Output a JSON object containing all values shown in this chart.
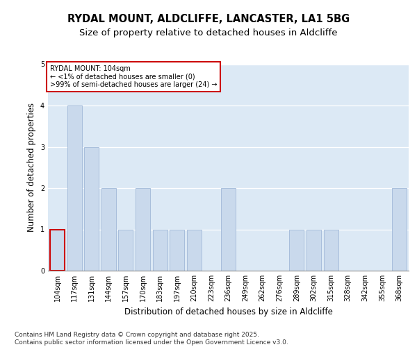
{
  "title1": "RYDAL MOUNT, ALDCLIFFE, LANCASTER, LA1 5BG",
  "title2": "Size of property relative to detached houses in Aldcliffe",
  "xlabel": "Distribution of detached houses by size in Aldcliffe",
  "ylabel": "Number of detached properties",
  "categories": [
    "104sqm",
    "117sqm",
    "131sqm",
    "144sqm",
    "157sqm",
    "170sqm",
    "183sqm",
    "197sqm",
    "210sqm",
    "223sqm",
    "236sqm",
    "249sqm",
    "262sqm",
    "276sqm",
    "289sqm",
    "302sqm",
    "315sqm",
    "328sqm",
    "342sqm",
    "355sqm",
    "368sqm"
  ],
  "values": [
    1,
    4,
    3,
    2,
    1,
    2,
    1,
    1,
    1,
    0,
    2,
    0,
    0,
    0,
    1,
    1,
    1,
    0,
    0,
    0,
    2
  ],
  "bar_color": "#c9d9ec",
  "bar_edge_color": "#a0b8d8",
  "highlight_index": 0,
  "annotation_box_color": "#ffffff",
  "annotation_box_edge_color": "#cc0000",
  "annotation_text": "RYDAL MOUNT: 104sqm\n← <1% of detached houses are smaller (0)\n>99% of semi-detached houses are larger (24) →",
  "ylim": [
    0,
    5
  ],
  "yticks": [
    0,
    1,
    2,
    3,
    4,
    5
  ],
  "footer_text": "Contains HM Land Registry data © Crown copyright and database right 2025.\nContains public sector information licensed under the Open Government Licence v3.0.",
  "bg_color": "#ffffff",
  "chart_bg_color": "#dce9f5",
  "grid_color": "#ffffff",
  "title_fontsize": 10.5,
  "subtitle_fontsize": 9.5,
  "axis_label_fontsize": 8.5,
  "tick_fontsize": 7,
  "annotation_fontsize": 7,
  "footer_fontsize": 6.5
}
